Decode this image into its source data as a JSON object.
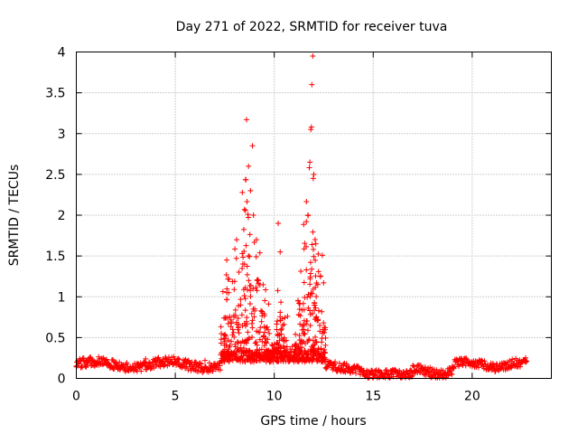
{
  "chart_data": {
    "type": "scatter",
    "title": "Day 271 of 2022, SRMTID for receiver tuva",
    "xlabel": "GPS time / hours",
    "ylabel": "SRMTID / TECUs",
    "xlim": [
      0,
      24
    ],
    "ylim": [
      0,
      4
    ],
    "x_ticks": [
      0,
      5,
      10,
      15,
      20
    ],
    "x_tick_labels": [
      "0",
      "5",
      "10",
      "15",
      "20"
    ],
    "y_ticks": [
      0,
      0.5,
      1,
      1.5,
      2,
      2.5,
      3,
      3.5,
      4
    ],
    "y_tick_labels": [
      "0",
      "0.5",
      "1",
      "1.5",
      "2",
      "2.5",
      "3",
      "3.5",
      "4"
    ],
    "grid": true,
    "marker": "plus",
    "marker_color": "#ff0000",
    "series": [
      {
        "name": "SRMTID",
        "description_of_data": "dense background near 0.1-0.25 across 0-22.7 h, storm bursts around 7.5-9.5 h and 11-12.5 h",
        "sample_points": [
          {
            "x": 0.0,
            "y": 0.15
          },
          {
            "x": 0.5,
            "y": 0.14
          },
          {
            "x": 1.0,
            "y": 0.17
          },
          {
            "x": 1.5,
            "y": 0.22
          },
          {
            "x": 2.0,
            "y": 0.18
          },
          {
            "x": 2.5,
            "y": 0.16
          },
          {
            "x": 3.0,
            "y": 0.15
          },
          {
            "x": 3.5,
            "y": 0.24
          },
          {
            "x": 4.0,
            "y": 0.2
          },
          {
            "x": 4.5,
            "y": 0.17
          },
          {
            "x": 5.0,
            "y": 0.19
          },
          {
            "x": 5.5,
            "y": 0.14
          },
          {
            "x": 6.0,
            "y": 0.2
          },
          {
            "x": 6.5,
            "y": 0.22
          },
          {
            "x": 7.0,
            "y": 0.18
          },
          {
            "x": 7.5,
            "y": 0.3
          },
          {
            "x": 7.6,
            "y": 1.45
          },
          {
            "x": 7.7,
            "y": 1.05
          },
          {
            "x": 7.9,
            "y": 0.6
          },
          {
            "x": 8.1,
            "y": 1.7
          },
          {
            "x": 8.3,
            "y": 0.9
          },
          {
            "x": 8.5,
            "y": 1.4
          },
          {
            "x": 8.6,
            "y": 3.17
          },
          {
            "x": 8.7,
            "y": 2.6
          },
          {
            "x": 8.8,
            "y": 2.3
          },
          {
            "x": 8.9,
            "y": 2.85
          },
          {
            "x": 8.95,
            "y": 2.0
          },
          {
            "x": 9.1,
            "y": 1.7
          },
          {
            "x": 9.2,
            "y": 1.2
          },
          {
            "x": 9.4,
            "y": 0.8
          },
          {
            "x": 9.6,
            "y": 0.35
          },
          {
            "x": 10.0,
            "y": 0.3
          },
          {
            "x": 10.2,
            "y": 1.9
          },
          {
            "x": 10.3,
            "y": 1.55
          },
          {
            "x": 10.5,
            "y": 0.5
          },
          {
            "x": 10.8,
            "y": 0.25
          },
          {
            "x": 11.2,
            "y": 0.95
          },
          {
            "x": 11.5,
            "y": 0.6
          },
          {
            "x": 11.7,
            "y": 2.0
          },
          {
            "x": 11.8,
            "y": 2.65
          },
          {
            "x": 11.85,
            "y": 3.05
          },
          {
            "x": 11.9,
            "y": 3.6
          },
          {
            "x": 11.95,
            "y": 3.95
          },
          {
            "x": 12.0,
            "y": 2.5
          },
          {
            "x": 12.1,
            "y": 1.65
          },
          {
            "x": 12.2,
            "y": 1.15
          },
          {
            "x": 12.3,
            "y": 0.65
          },
          {
            "x": 12.5,
            "y": 0.25
          },
          {
            "x": 13.0,
            "y": 0.18
          },
          {
            "x": 13.5,
            "y": 0.16
          },
          {
            "x": 14.0,
            "y": 0.13
          },
          {
            "x": 14.5,
            "y": 0.08
          },
          {
            "x": 15.0,
            "y": 0.05
          },
          {
            "x": 16.0,
            "y": 0.05
          },
          {
            "x": 17.0,
            "y": 0.07
          },
          {
            "x": 17.5,
            "y": 0.12
          },
          {
            "x": 18.0,
            "y": 0.09
          },
          {
            "x": 18.5,
            "y": 0.06
          },
          {
            "x": 19.0,
            "y": 0.13
          },
          {
            "x": 19.5,
            "y": 0.17
          },
          {
            "x": 20.0,
            "y": 0.15
          },
          {
            "x": 20.5,
            "y": 0.18
          },
          {
            "x": 21.0,
            "y": 0.15
          },
          {
            "x": 21.5,
            "y": 0.16
          },
          {
            "x": 22.0,
            "y": 0.21
          },
          {
            "x": 22.5,
            "y": 0.2
          },
          {
            "x": 22.7,
            "y": 0.2
          }
        ]
      }
    ]
  }
}
